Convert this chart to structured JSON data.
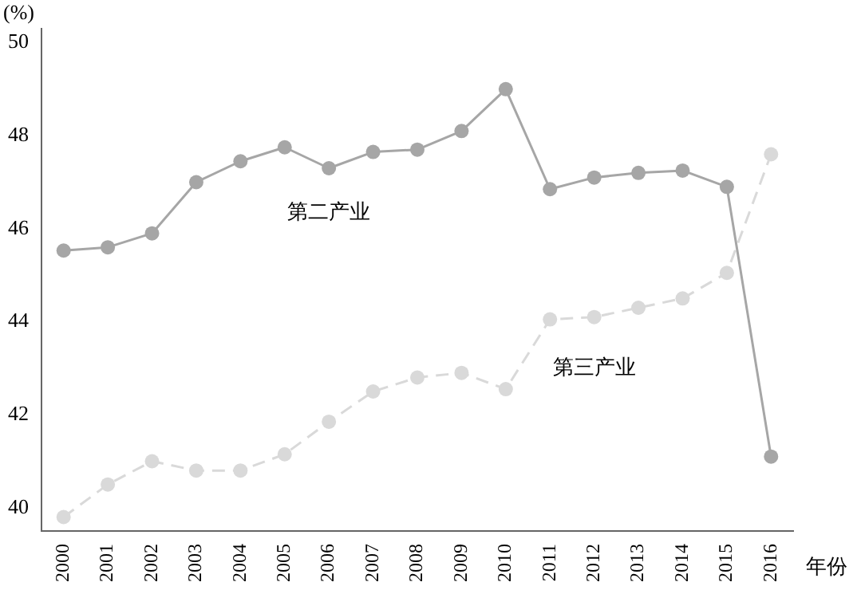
{
  "chart_data": {
    "type": "line",
    "xlabel": "年份",
    "ylabel": "(%)",
    "categories": [
      "2000",
      "2001",
      "2002",
      "2003",
      "2004",
      "2005",
      "2006",
      "2007",
      "2008",
      "2009",
      "2010",
      "2011",
      "2012",
      "2013",
      "2014",
      "2015",
      "2016"
    ],
    "series": [
      {
        "name": "第二产业",
        "color": "#a6a6a6",
        "line_style": "solid",
        "values": [
          45.53,
          45.6,
          45.9,
          47.0,
          47.45,
          47.75,
          47.3,
          47.65,
          47.7,
          48.1,
          49.0,
          46.85,
          47.1,
          47.2,
          47.25,
          46.9,
          41.1
        ]
      },
      {
        "name": "第三产业",
        "color": "#d9d9d9",
        "line_style": "dashed",
        "values": [
          39.8,
          40.5,
          41.0,
          40.8,
          40.8,
          41.15,
          41.85,
          42.5,
          42.8,
          42.9,
          42.55,
          44.05,
          44.1,
          44.3,
          44.5,
          45.05,
          47.6
        ]
      }
    ],
    "ylim": [
      39.5,
      50.3
    ],
    "yticks": [
      40,
      42,
      44,
      46,
      48,
      50
    ],
    "grid": false,
    "legend": false,
    "marker": "circle"
  }
}
